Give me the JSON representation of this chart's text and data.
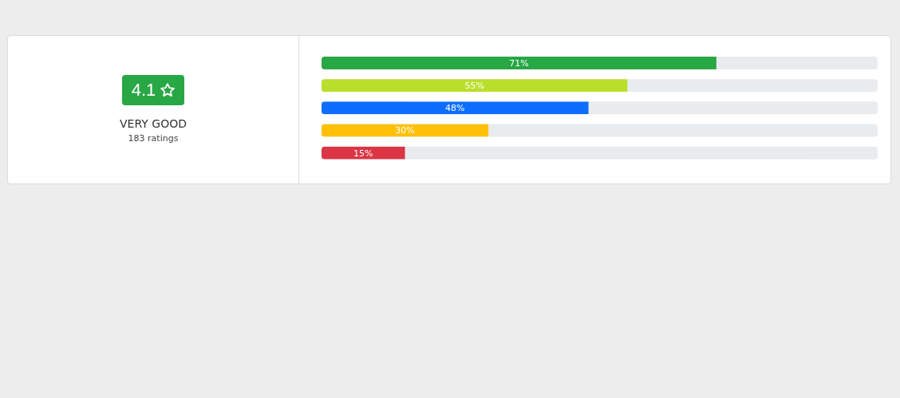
{
  "chart_data": [
    {
      "type": "other",
      "annotations": [
        "4.1",
        "VERY GOOD",
        "183 ratings"
      ]
    },
    {
      "type": "bar",
      "orientation": "horizontal",
      "categories": [
        null,
        null,
        null,
        null,
        null
      ],
      "values": [
        71,
        55,
        48,
        30,
        15
      ],
      "colors": [
        "#28a745",
        "#b9df2a",
        "#0d6efd",
        "#ffc107",
        "#dc3545"
      ],
      "value_labels": [
        "71%",
        "55%",
        "48%",
        "30%",
        "15%"
      ],
      "xlim": [
        0,
        100
      ],
      "tick_labels": false
    }
  ]
}
